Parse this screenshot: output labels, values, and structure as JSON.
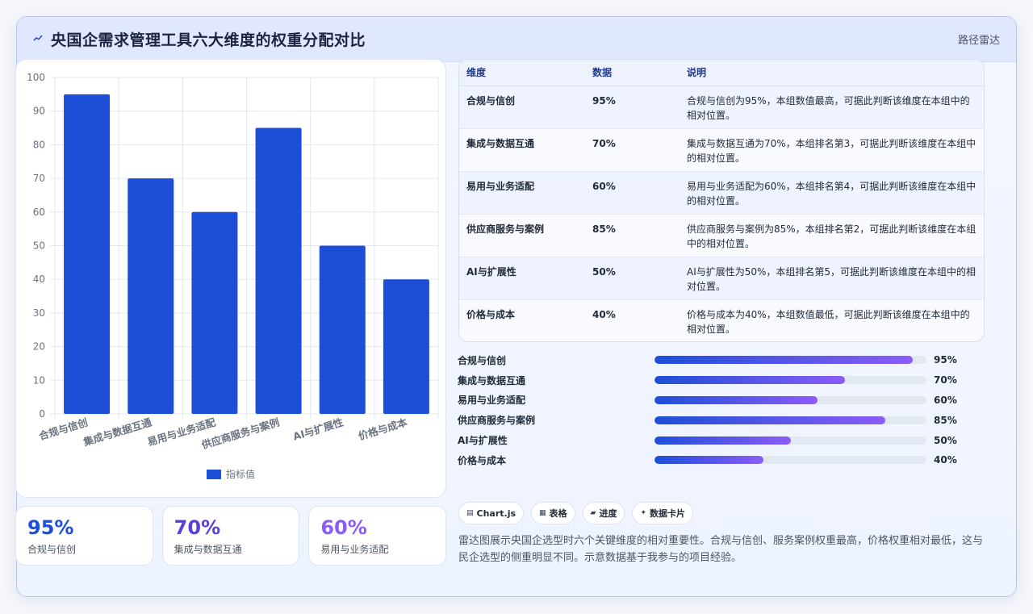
{
  "header": {
    "icon": "chart-line-icon",
    "title": "央国企需求管理工具六大维度的权重分配对比",
    "right_label": "路径雷达"
  },
  "chart_data": {
    "type": "bar",
    "categories": [
      "合规与信创",
      "集成与数据互通",
      "易用与业务适配",
      "供应商服务与案例",
      "AI与扩展性",
      "价格与成本"
    ],
    "series": [
      {
        "name": "指标值",
        "values": [
          95,
          70,
          60,
          85,
          50,
          40
        ]
      }
    ],
    "ylim": [
      0,
      100
    ],
    "yticks": [
      0,
      10,
      20,
      30,
      40,
      50,
      60,
      70,
      80,
      90,
      100
    ],
    "legend_position": "bottom",
    "grid": true,
    "bar_color": "#1d4ed8",
    "xlabel": "",
    "ylabel": ""
  },
  "kpis": [
    {
      "value": "95%",
      "label": "合规与信创",
      "color": "#1d4ed8"
    },
    {
      "value": "70%",
      "label": "集成与数据互通",
      "color": "#5b3fd8"
    },
    {
      "value": "60%",
      "label": "易用与业务适配",
      "color": "#8b5cf6"
    }
  ],
  "table": {
    "headers": [
      "维度",
      "数据",
      "说明"
    ],
    "rows": [
      {
        "dim": "合规与信创",
        "val": "95%",
        "note": "合规与信创为95%，本组数值最高，可据此判断该维度在本组中的相对位置。"
      },
      {
        "dim": "集成与数据互通",
        "val": "70%",
        "note": "集成与数据互通为70%，本组排名第3，可据此判断该维度在本组中的相对位置。"
      },
      {
        "dim": "易用与业务适配",
        "val": "60%",
        "note": "易用与业务适配为60%，本组排名第4，可据此判断该维度在本组中的相对位置。"
      },
      {
        "dim": "供应商服务与案例",
        "val": "85%",
        "note": "供应商服务与案例为85%，本组排名第2，可据此判断该维度在本组中的相对位置。"
      },
      {
        "dim": "AI与扩展性",
        "val": "50%",
        "note": "AI与扩展性为50%，本组排名第5，可据此判断该维度在本组中的相对位置。"
      },
      {
        "dim": "价格与成本",
        "val": "40%",
        "note": "价格与成本为40%，本组数值最低，可据此判断该维度在本组中的相对位置。"
      }
    ]
  },
  "progress": [
    {
      "label": "合规与信创",
      "value": 95,
      "text": "95%"
    },
    {
      "label": "集成与数据互通",
      "value": 70,
      "text": "70%"
    },
    {
      "label": "易用与业务适配",
      "value": 60,
      "text": "60%"
    },
    {
      "label": "供应商服务与案例",
      "value": 85,
      "text": "85%"
    },
    {
      "label": "AI与扩展性",
      "value": 50,
      "text": "50%"
    },
    {
      "label": "价格与成本",
      "value": 40,
      "text": "40%"
    }
  ],
  "tags": [
    {
      "icon": "▤",
      "label": "Chart.js"
    },
    {
      "icon": "▦",
      "label": "表格"
    },
    {
      "icon": "▰",
      "label": "进度"
    },
    {
      "icon": "✦",
      "label": "数据卡片"
    }
  ],
  "description": "雷达图展示央国企选型时六个关键维度的相对重要性。合规与信创、服务案例权重最高，价格权重相对最低，这与民企选型的侧重明显不同。示意数据基于我参与的项目经验。"
}
